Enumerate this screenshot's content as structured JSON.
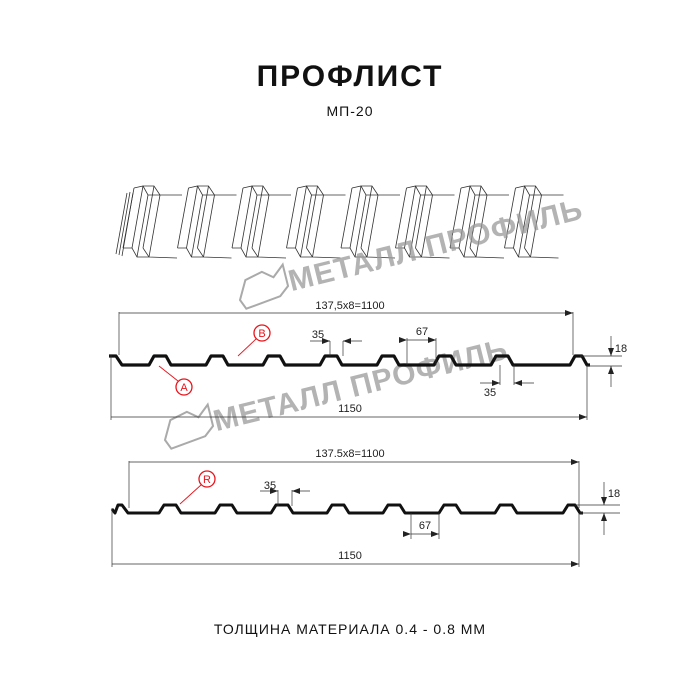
{
  "header": {
    "title": "ПРОФЛИСТ",
    "subtitle": "МП-20"
  },
  "watermark": {
    "text": "МЕТАЛЛ ПРОФИЛЬ"
  },
  "profile_a": {
    "total_label": "137,5x8=1100",
    "rib_top_label": "35",
    "rib_pitch_label": "67",
    "bottom_gap_label": "35",
    "overall_label": "1150",
    "height_label": "18",
    "marker_b": "B",
    "marker_a": "A"
  },
  "profile_r": {
    "total_label": "137.5x8=1100",
    "marker_r": "R",
    "rib_top_label": "35",
    "rib_pitch_label": "67",
    "overall_label": "1150",
    "height_label": "18"
  },
  "footer": {
    "thickness": "ТОЛЩИНА МАТЕРИАЛА 0.4 - 0.8 ММ"
  },
  "colors": {
    "marker": "#e8141c",
    "line": "#111111",
    "watermark": "#9a9a9a"
  }
}
